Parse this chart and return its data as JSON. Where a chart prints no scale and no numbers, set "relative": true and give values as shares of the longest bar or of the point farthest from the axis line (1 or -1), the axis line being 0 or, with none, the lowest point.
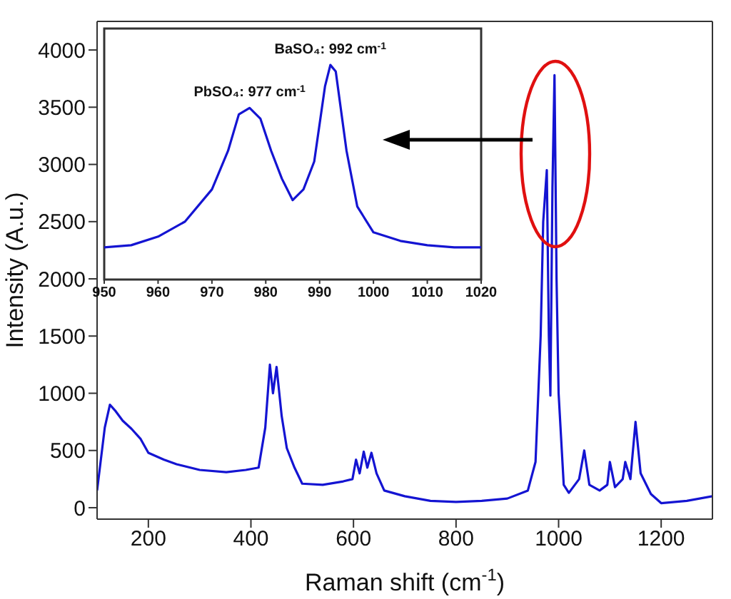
{
  "chart_data": [
    {
      "type": "line",
      "xlabel": "Raman shift (cm$^{-1}$)",
      "ylabel": "Intensity (A.u.)",
      "xlim": [
        100,
        1300
      ],
      "xticks": [
        200,
        400,
        600,
        800,
        1000,
        1200
      ],
      "ylim": [
        -100,
        4250
      ],
      "yticks": [
        0,
        500,
        1000,
        1500,
        2000,
        2500,
        3000,
        3500,
        4000
      ],
      "series": [
        {
          "color": "#1414d2",
          "x": [
            100,
            115,
            125,
            135,
            150,
            167,
            185,
            200,
            230,
            255,
            300,
            352,
            390,
            415,
            428,
            437,
            443,
            450,
            460,
            470,
            485,
            500,
            540,
            580,
            598,
            605,
            612,
            620,
            627,
            635,
            645,
            660,
            700,
            750,
            800,
            850,
            900,
            940,
            955,
            965,
            970,
            977,
            981,
            984,
            988,
            992,
            996,
            1000,
            1010,
            1020,
            1040,
            1050,
            1060,
            1080,
            1095,
            1100,
            1110,
            1125,
            1130,
            1140,
            1150,
            1160,
            1180,
            1200,
            1250,
            1300
          ],
          "values": [
            150,
            700,
            900,
            850,
            760,
            690,
            600,
            480,
            420,
            380,
            330,
            310,
            330,
            350,
            700,
            1250,
            1000,
            1230,
            800,
            520,
            350,
            210,
            200,
            230,
            250,
            420,
            300,
            490,
            350,
            480,
            300,
            150,
            100,
            60,
            50,
            60,
            80,
            150,
            400,
            1500,
            2500,
            2950,
            1500,
            980,
            2800,
            3780,
            2000,
            1000,
            200,
            130,
            250,
            500,
            200,
            150,
            200,
            400,
            180,
            250,
            400,
            250,
            750,
            300,
            120,
            40,
            60,
            100
          ]
        }
      ]
    },
    {
      "type": "line",
      "relative": true,
      "xlim": [
        950,
        1020
      ],
      "xticks": [
        950,
        960,
        970,
        980,
        990,
        1000,
        1010,
        1020
      ],
      "tick_labels": "x",
      "annotations": [
        {
          "text": "PbSO₄: 977 cm$^{-1}$",
          "x": 977,
          "y": 0.8
        },
        {
          "text": "BaSO₄: 992 cm$^{-1}$",
          "x": 992,
          "y": 1.0
        }
      ],
      "series": [
        {
          "color": "#1414d2",
          "x": [
            950,
            955,
            960,
            965,
            970,
            973,
            975,
            977,
            979,
            981,
            983,
            985,
            987,
            989,
            991,
            992,
            993,
            995,
            997,
            1000,
            1005,
            1010,
            1015,
            1020
          ],
          "values": [
            0.15,
            0.16,
            0.2,
            0.27,
            0.42,
            0.6,
            0.77,
            0.8,
            0.75,
            0.6,
            0.47,
            0.37,
            0.42,
            0.55,
            0.9,
            1.0,
            0.97,
            0.6,
            0.34,
            0.22,
            0.18,
            0.16,
            0.15,
            0.15
          ]
        }
      ]
    }
  ]
}
